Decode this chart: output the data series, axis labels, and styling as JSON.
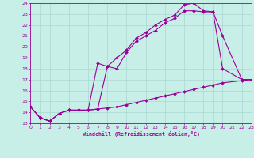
{
  "xlabel": "Windchill (Refroidissement éolien,°C)",
  "background_color": "#c8eee8",
  "grid_color": "#aad8d0",
  "line_color": "#990099",
  "xlim": [
    0,
    23
  ],
  "ylim": [
    13,
    24
  ],
  "yticks": [
    13,
    14,
    15,
    16,
    17,
    18,
    19,
    20,
    21,
    22,
    23,
    24
  ],
  "xticks": [
    0,
    1,
    2,
    3,
    4,
    5,
    6,
    7,
    8,
    9,
    10,
    11,
    12,
    13,
    14,
    15,
    16,
    17,
    18,
    19,
    20,
    21,
    22,
    23
  ],
  "line1_x": [
    0,
    1,
    2,
    3,
    4,
    5,
    6,
    7,
    8,
    9,
    10,
    11,
    12,
    13,
    14,
    15,
    16,
    17,
    18,
    19,
    20,
    22,
    23
  ],
  "line1_y": [
    14.5,
    13.5,
    13.2,
    13.9,
    14.2,
    14.2,
    14.2,
    18.5,
    18.2,
    19.0,
    19.7,
    20.8,
    21.3,
    22.0,
    22.5,
    22.9,
    23.85,
    24.0,
    23.3,
    23.2,
    21.0,
    17.0,
    17.0
  ],
  "line2_x": [
    0,
    1,
    2,
    3,
    4,
    5,
    6,
    7,
    8,
    9,
    10,
    11,
    12,
    13,
    14,
    15,
    16,
    17,
    18,
    19,
    20,
    22,
    23
  ],
  "line2_y": [
    14.5,
    13.5,
    13.2,
    13.9,
    14.2,
    14.2,
    14.2,
    14.3,
    18.2,
    18.0,
    19.5,
    20.5,
    21.0,
    21.5,
    22.2,
    22.6,
    23.3,
    23.3,
    23.2,
    23.2,
    18.0,
    17.0,
    17.0
  ],
  "line3_x": [
    0,
    1,
    2,
    3,
    4,
    5,
    6,
    7,
    8,
    9,
    10,
    11,
    12,
    13,
    14,
    15,
    16,
    17,
    18,
    19,
    20,
    22,
    23
  ],
  "line3_y": [
    14.5,
    13.5,
    13.2,
    13.9,
    14.2,
    14.2,
    14.2,
    14.3,
    14.4,
    14.5,
    14.7,
    14.9,
    15.1,
    15.3,
    15.5,
    15.7,
    15.9,
    16.1,
    16.3,
    16.5,
    16.7,
    16.9,
    17.0
  ]
}
